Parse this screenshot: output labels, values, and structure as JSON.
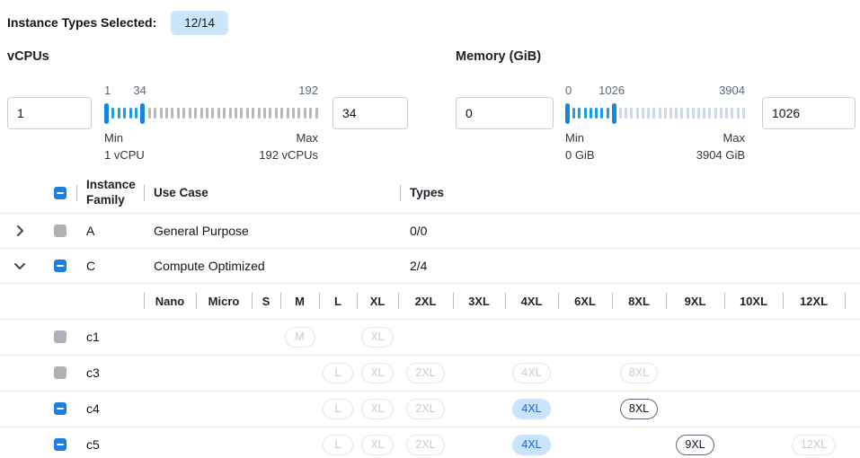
{
  "topbar": {
    "label": "Instance Types Selected:",
    "badge": "12/14"
  },
  "filters": {
    "vcpus": {
      "title": "vCPUs",
      "from": "1",
      "to": "34",
      "labels": {
        "start": "1",
        "handle": "34",
        "end": "192"
      },
      "min_title": "Min",
      "min_value": "1 vCPU",
      "max_title": "Max",
      "max_value": "192 vCPUs",
      "ticks_total": 37,
      "handle2_index": 6,
      "unselected_color": "#b5b8bc"
    },
    "memory": {
      "title": "Memory (GiB)",
      "from": "0",
      "to": "1026",
      "labels": {
        "start": "0",
        "handle": "1026",
        "end": "3904"
      },
      "min_title": "Min",
      "min_value": "0 GiB",
      "max_title": "Max",
      "max_value": "3904 GiB",
      "ticks_total": 32,
      "handle2_index": 8,
      "unselected_color": "#ccd9ec"
    }
  },
  "table": {
    "select_all_state": "indeterminate",
    "columns": {
      "family": "Instance Family",
      "use_case": "Use Case",
      "types": "Types"
    },
    "size_columns": [
      "Nano",
      "Micro",
      "S",
      "M",
      "L",
      "XL",
      "2XL",
      "3XL",
      "4XL",
      "6XL",
      "8XL",
      "9XL",
      "10XL",
      "12XL"
    ],
    "family_rows": [
      {
        "name": "A",
        "use_case": "General Purpose",
        "types": "0/0",
        "expanded": false,
        "checkbox": "disabled"
      },
      {
        "name": "C",
        "use_case": "Compute Optimized",
        "types": "2/4",
        "expanded": true,
        "checkbox": "indeterminate"
      }
    ],
    "instance_rows": [
      {
        "name": "c1",
        "checkbox": "disabled",
        "pills": [
          {
            "label": "M",
            "column": "M",
            "state": "disabled"
          },
          {
            "label": "XL",
            "column": "XL",
            "state": "disabled"
          }
        ]
      },
      {
        "name": "c3",
        "checkbox": "disabled",
        "pills": [
          {
            "label": "L",
            "column": "L",
            "state": "disabled"
          },
          {
            "label": "XL",
            "column": "XL",
            "state": "disabled"
          },
          {
            "label": "2XL",
            "column": "2XL",
            "state": "disabled"
          },
          {
            "label": "4XL",
            "column": "4XL",
            "state": "disabled"
          },
          {
            "label": "8XL",
            "column": "8XL",
            "state": "disabled"
          }
        ]
      },
      {
        "name": "c4",
        "checkbox": "indeterminate",
        "pills": [
          {
            "label": "L",
            "column": "L",
            "state": "disabled"
          },
          {
            "label": "XL",
            "column": "XL",
            "state": "disabled"
          },
          {
            "label": "2XL",
            "column": "2XL",
            "state": "disabled"
          },
          {
            "label": "4XL",
            "column": "4XL",
            "state": "selected"
          },
          {
            "label": "8XL",
            "column": "8XL",
            "state": "unselected"
          }
        ]
      },
      {
        "name": "c5",
        "checkbox": "indeterminate",
        "pills": [
          {
            "label": "L",
            "column": "L",
            "state": "disabled"
          },
          {
            "label": "XL",
            "column": "XL",
            "state": "disabled"
          },
          {
            "label": "2XL",
            "column": "2XL",
            "state": "disabled"
          },
          {
            "label": "4XL",
            "column": "4XL",
            "state": "selected"
          },
          {
            "label": "9XL",
            "column": "9XL",
            "state": "unselected"
          },
          {
            "label": "12XL",
            "column": "12XL",
            "state": "disabled"
          }
        ]
      }
    ]
  },
  "colors": {
    "accent_blue": "#1e7ce5",
    "badge_bg": "#cbe5fb",
    "selected_pill_bg": "#cce4fb",
    "selected_pill_text": "#1566d0",
    "slider_handle": "#1586e0",
    "slider_tick_selected": "#1d9be8",
    "slider_tick_vcpu_unselected": "#b5b8bc",
    "slider_tick_memory_unselected": "#ccd9ec",
    "disabled_checkbox": "#aeb2b8",
    "disabled_pill_border": "#e4e7eb",
    "row_divider": "#e6e9ed"
  }
}
